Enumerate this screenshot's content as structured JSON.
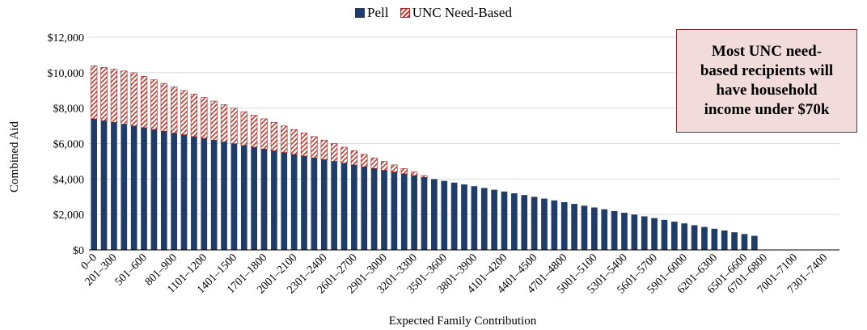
{
  "chart_data": {
    "type": "stacked-bar",
    "xlabel": "Expected Family Contribution",
    "ylabel": "Combined Aid",
    "ylim": [
      0,
      12000
    ],
    "yticks": [
      {
        "value": 0,
        "label": "$0"
      },
      {
        "value": 2000,
        "label": "$2,000"
      },
      {
        "value": 4000,
        "label": "$4,000"
      },
      {
        "value": 6000,
        "label": "$6,000"
      },
      {
        "value": 8000,
        "label": "$8,000"
      },
      {
        "value": 10000,
        "label": "$10,000"
      },
      {
        "value": 12000,
        "label": "$12,000"
      }
    ],
    "legend_position": "top-center",
    "series_colors": {
      "pell": "#1f3d68",
      "unc": "#c0392b"
    },
    "x_tick_labels": [
      "0–0",
      "201–300",
      "501–600",
      "801–900",
      "1101–1200",
      "1401–1500",
      "1701–1800",
      "2001–2100",
      "2301–2400",
      "2601–2700",
      "2901–3000",
      "3201–3300",
      "3501–3600",
      "3801–3900",
      "4101–4200",
      "4401–4500",
      "4701–4800",
      "5001–5100",
      "5301–5400",
      "5601–5700",
      "5901–6000",
      "6201–6300",
      "6501–6600",
      "6701–6800",
      "7001–7100",
      "7301–7400"
    ],
    "x_tick_bar_index": [
      0,
      2,
      5,
      8,
      11,
      14,
      17,
      20,
      23,
      26,
      29,
      32,
      35,
      38,
      41,
      44,
      47,
      50,
      53,
      56,
      59,
      62,
      65,
      67,
      70,
      73
    ],
    "series": [
      {
        "name": "Pell",
        "values": [
          7395,
          7295,
          7195,
          7095,
          6995,
          6895,
          6795,
          6695,
          6595,
          6495,
          6395,
          6295,
          6195,
          6095,
          5995,
          5895,
          5795,
          5695,
          5595,
          5495,
          5395,
          5295,
          5195,
          5095,
          4995,
          4895,
          4795,
          4695,
          4595,
          4495,
          4395,
          4295,
          4195,
          4095,
          3995,
          3895,
          3795,
          3695,
          3595,
          3495,
          3395,
          3295,
          3195,
          3095,
          2995,
          2895,
          2795,
          2695,
          2595,
          2495,
          2395,
          2295,
          2195,
          2095,
          1995,
          1895,
          1795,
          1695,
          1595,
          1495,
          1395,
          1295,
          1195,
          1095,
          995,
          895,
          795,
          0,
          0,
          0,
          0,
          0,
          0,
          0,
          0
        ]
      },
      {
        "name": "UNC Need-Based",
        "values": [
          3000,
          3000,
          3000,
          3000,
          3000,
          2900,
          2800,
          2700,
          2600,
          2500,
          2400,
          2300,
          2200,
          2100,
          2000,
          1900,
          1800,
          1700,
          1600,
          1500,
          1400,
          1300,
          1200,
          1100,
          1000,
          900,
          800,
          700,
          600,
          500,
          400,
          300,
          200,
          100,
          0,
          0,
          0,
          0,
          0,
          0,
          0,
          0,
          0,
          0,
          0,
          0,
          0,
          0,
          0,
          0,
          0,
          0,
          0,
          0,
          0,
          0,
          0,
          0,
          0,
          0,
          0,
          0,
          0,
          0,
          0,
          0,
          0,
          0,
          0,
          0,
          0,
          0,
          0,
          0,
          0
        ]
      }
    ]
  },
  "legend": [
    {
      "label": "Pell"
    },
    {
      "label": "UNC Need-Based"
    }
  ],
  "callout": {
    "lines": [
      "Most UNC need-",
      "based recipients will",
      "have household",
      "income under $70k"
    ]
  }
}
